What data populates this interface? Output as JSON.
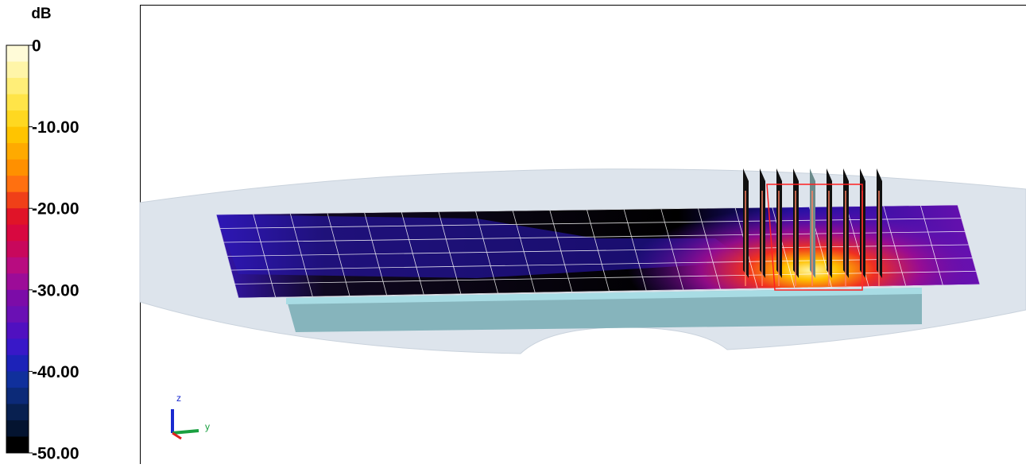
{
  "colorbar": {
    "unit": "dB",
    "lim": [
      -50,
      0
    ],
    "ticks": [
      {
        "value": 0,
        "label": "0"
      },
      {
        "value": -10,
        "label": "-10.00"
      },
      {
        "value": -20,
        "label": "-20.00"
      },
      {
        "value": -30,
        "label": "-30.00"
      },
      {
        "value": -40,
        "label": "-40.00"
      },
      {
        "value": -50,
        "label": "-50.00"
      }
    ],
    "colors": [
      "#fffbd8",
      "#fff5a8",
      "#ffee78",
      "#ffe448",
      "#ffd820",
      "#ffc400",
      "#ffaa00",
      "#ff9000",
      "#ff7010",
      "#f04018",
      "#e01428",
      "#d80840",
      "#c8085c",
      "#b80c80",
      "#9c0c98",
      "#7c0ca8",
      "#6a10b4",
      "#5010c0",
      "#3818c8",
      "#1c22b8",
      "#10309c",
      "#0c2a78",
      "#082050",
      "#041430",
      "#000000"
    ]
  },
  "axes_triad": {
    "z": "z",
    "y": "y"
  }
}
